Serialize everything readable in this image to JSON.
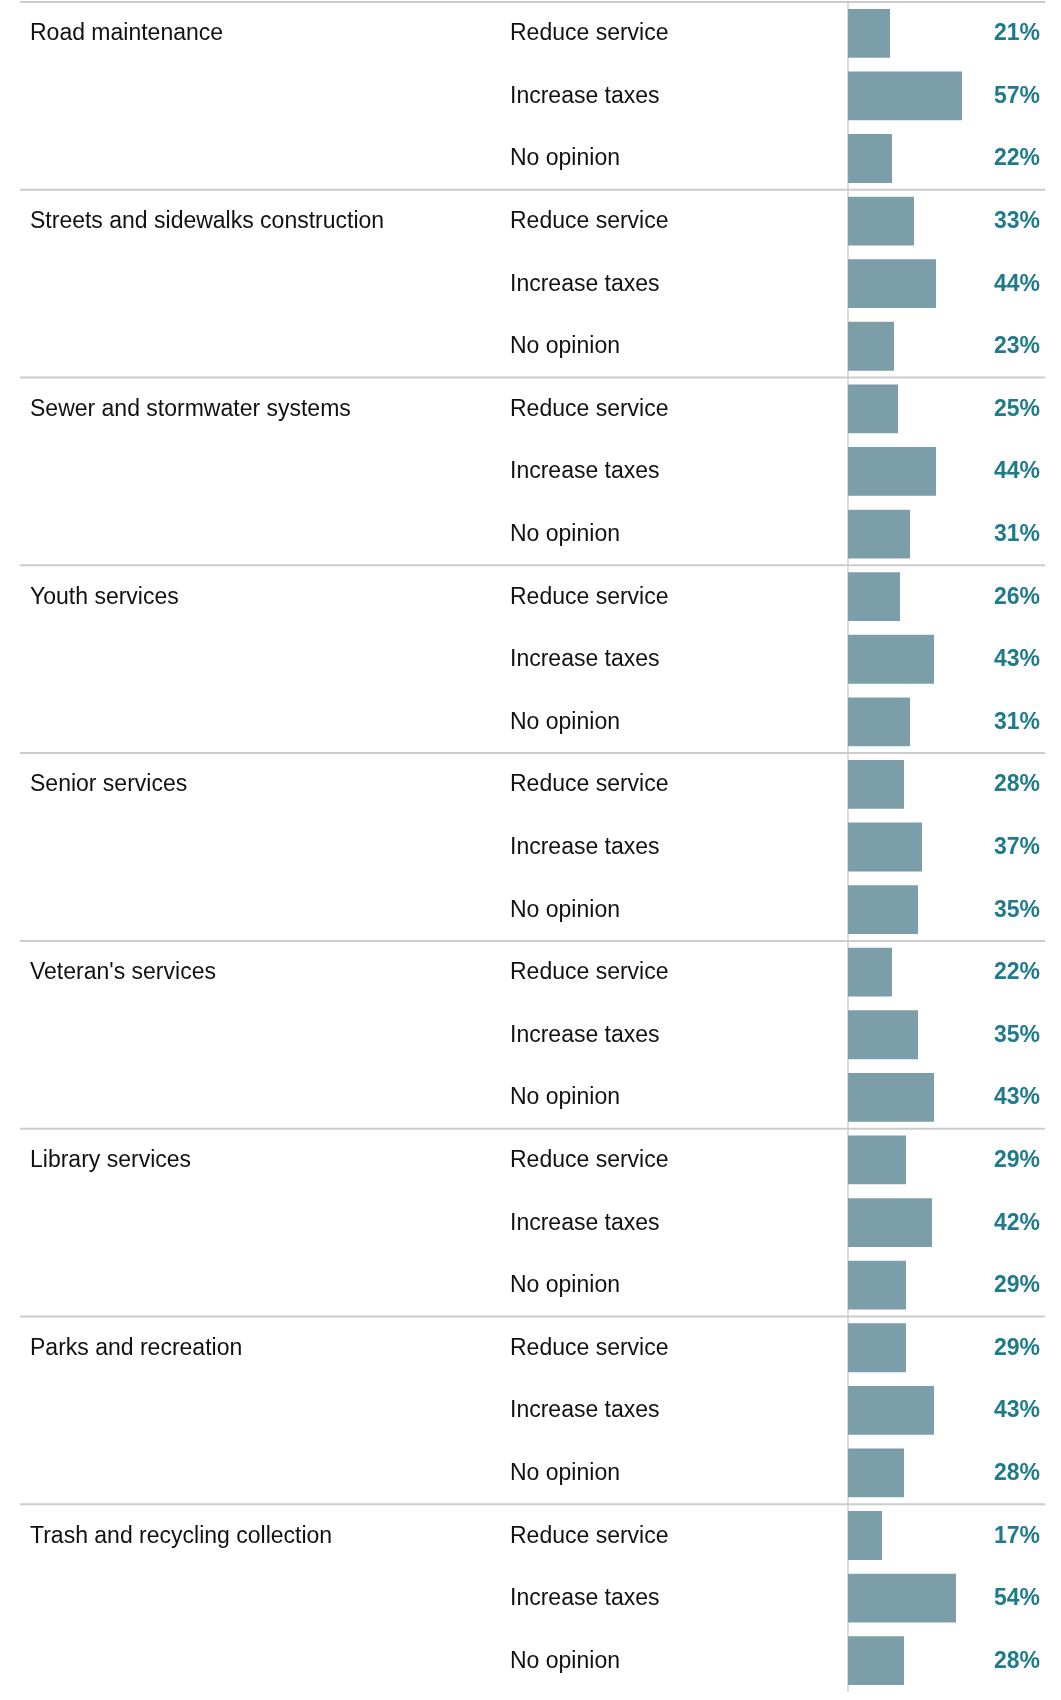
{
  "chart_data": {
    "type": "bar",
    "orientation": "horizontal",
    "categories": [
      "Reduce service",
      "Increase taxes",
      "No opinion",
      "Reduce service",
      "Increase taxes",
      "No opinion",
      "Reduce service",
      "Increase taxes",
      "No opinion",
      "Reduce service",
      "Increase taxes",
      "No opinion",
      "Reduce service",
      "Increase taxes",
      "No opinion",
      "Reduce service",
      "Increase taxes",
      "No opinion",
      "Reduce service",
      "Increase taxes",
      "No opinion",
      "Reduce service",
      "Increase taxes",
      "No opinion",
      "Reduce service",
      "Increase taxes",
      "No opinion"
    ],
    "values": [
      21,
      57,
      22,
      33,
      44,
      23,
      25,
      44,
      31,
      26,
      43,
      31,
      28,
      37,
      35,
      22,
      35,
      43,
      29,
      42,
      29,
      29,
      43,
      28,
      17,
      54,
      28
    ],
    "value_labels": [
      "21%",
      "57%",
      "22%",
      "33%",
      "44%",
      "23%",
      "25%",
      "44%",
      "31%",
      "26%",
      "43%",
      "31%",
      "28%",
      "37%",
      "35%",
      "22%",
      "35%",
      "43%",
      "29%",
      "42%",
      "29%",
      "29%",
      "43%",
      "28%",
      "17%",
      "54%",
      "28%"
    ],
    "annotations": [
      "Road maintenance",
      "Streets and sidewalks construction",
      "Sewer and stormwater systems",
      "Youth services",
      "Senior services",
      "Veteran's services",
      "Library services",
      "Parks and recreation",
      "Trash and recycling collection"
    ],
    "color": "#7b9ea8"
  }
}
